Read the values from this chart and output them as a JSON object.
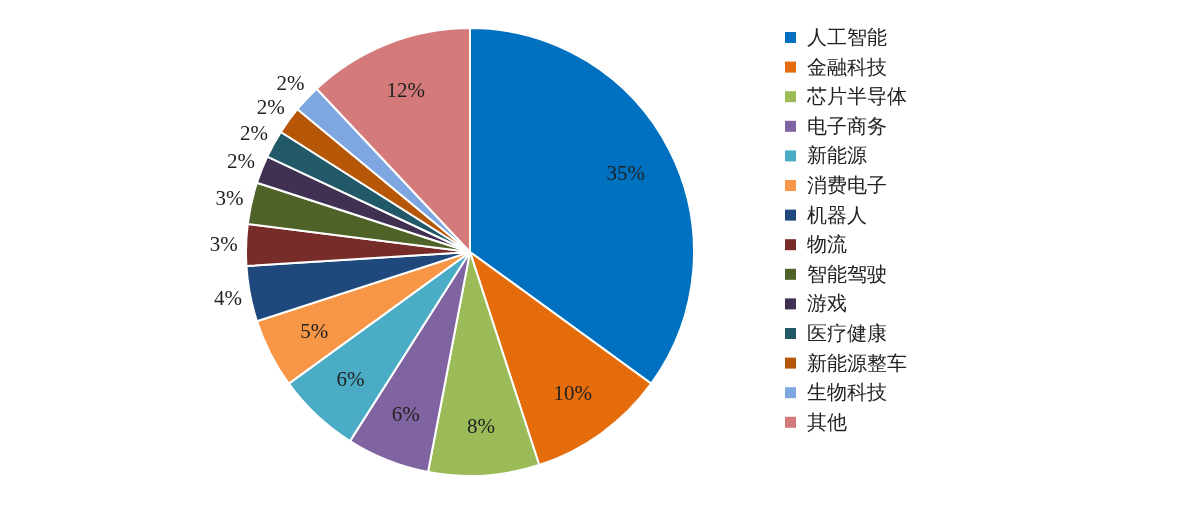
{
  "chart_data": {
    "type": "pie",
    "categories": [
      "人工智能",
      "金融科技",
      "芯片半导体",
      "电子商务",
      "新能源",
      "消费电子",
      "机器人",
      "物流",
      "智能驾驶",
      "游戏",
      "医疗健康",
      "新能源整车",
      "生物科技",
      "其他"
    ],
    "values": [
      35,
      10,
      8,
      6,
      6,
      5,
      4,
      3,
      3,
      2,
      2,
      2,
      2,
      12
    ],
    "colors": [
      "#0070c0",
      "#e46c0a",
      "#9bbb59",
      "#8064a2",
      "#4bacc6",
      "#f79646",
      "#1f497d",
      "#772c2a",
      "#4f6228",
      "#403152",
      "#215968",
      "#b65708",
      "#7ea6e0",
      "#d47a7a"
    ],
    "value_labels": [
      "35%",
      "10%",
      "8%",
      "6%",
      "6%",
      "5%",
      "4%",
      "3%",
      "3%",
      "2%",
      "2%",
      "2%",
      "2%",
      "12%"
    ],
    "legend": "right"
  }
}
